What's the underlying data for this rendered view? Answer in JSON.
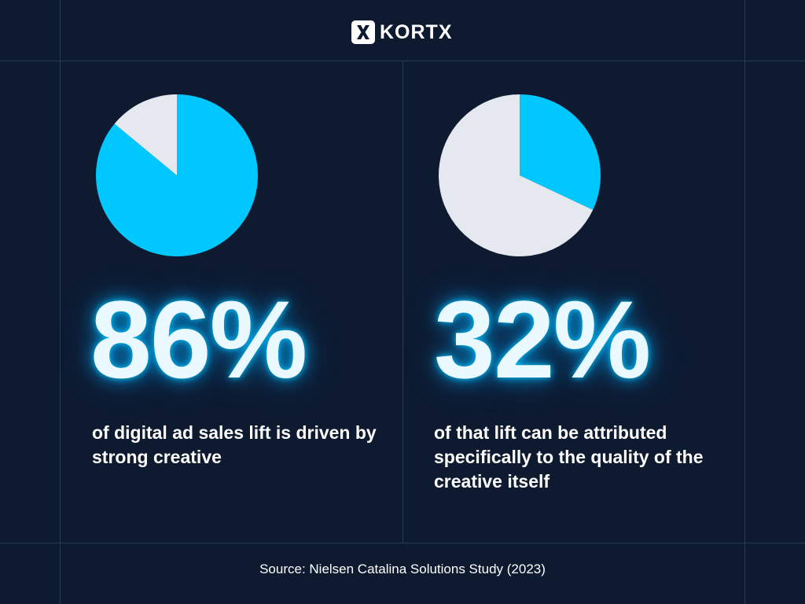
{
  "brand": {
    "logo_text": "KORTX",
    "logo_icon": "x-icon"
  },
  "colors": {
    "background": "#0d1a30",
    "accent": "#00c8ff",
    "remainder": "#e5e8ee",
    "grid_line": "#2a3a55"
  },
  "stats": [
    {
      "value_label": "86%",
      "description": "of digital ad sales lift is driven by strong creative"
    },
    {
      "value_label": "32%",
      "description": "of that lift can be attributed specifically to the quality of the creative itself"
    }
  ],
  "source": "Source: Nielsen Catalina Solutions Study (2023)",
  "chart_data": [
    {
      "type": "pie",
      "slices": [
        {
          "value": 86,
          "color": "#00c8ff"
        },
        {
          "value": 14,
          "color": "#e5e8ee"
        }
      ]
    },
    {
      "type": "pie",
      "slices": [
        {
          "value": 32,
          "color": "#00c8ff"
        },
        {
          "value": 68,
          "color": "#e5e8ee"
        }
      ]
    }
  ]
}
